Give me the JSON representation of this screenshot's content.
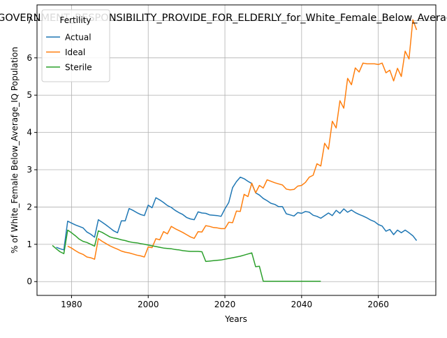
{
  "chart_data": {
    "type": "line",
    "title": "GOVERNMENT_RESPONSIBILITY_PROVIDE_FOR_ELDERLY_for_White_Female_Below_Average_IQ",
    "xlabel": "Years",
    "ylabel": "% of White_Female Below_Average_IQ Population",
    "xlim": [
      1971,
      2075
    ],
    "ylim": [
      -0.37,
      7.42
    ],
    "x_ticks": [
      1980,
      2000,
      2020,
      2040,
      2060
    ],
    "y_ticks": [
      0,
      1,
      2,
      3,
      4,
      5,
      6,
      7
    ],
    "grid": true,
    "legend": {
      "title": "Fertility",
      "placement": "top-left"
    },
    "series": [
      {
        "name": "Actual",
        "color": "#1f77b4",
        "points": [
          [
            1976,
            0.92
          ],
          [
            1977,
            0.88
          ],
          [
            1978,
            0.85
          ],
          [
            1979,
            1.62
          ],
          [
            1980,
            1.57
          ],
          [
            1981,
            1.52
          ],
          [
            1982,
            1.48
          ],
          [
            1983,
            1.44
          ],
          [
            1984,
            1.33
          ],
          [
            1985,
            1.27
          ],
          [
            1986,
            1.19
          ],
          [
            1987,
            1.66
          ],
          [
            1988,
            1.59
          ],
          [
            1989,
            1.52
          ],
          [
            1990,
            1.44
          ],
          [
            1991,
            1.36
          ],
          [
            1992,
            1.31
          ],
          [
            1993,
            1.63
          ],
          [
            1994,
            1.63
          ],
          [
            1995,
            1.96
          ],
          [
            1996,
            1.91
          ],
          [
            1997,
            1.85
          ],
          [
            1998,
            1.8
          ],
          [
            1999,
            1.77
          ],
          [
            2000,
            2.05
          ],
          [
            2001,
            1.98
          ],
          [
            2002,
            2.25
          ],
          [
            2003,
            2.19
          ],
          [
            2004,
            2.12
          ],
          [
            2005,
            2.04
          ],
          [
            2006,
            1.99
          ],
          [
            2007,
            1.91
          ],
          [
            2008,
            1.85
          ],
          [
            2009,
            1.8
          ],
          [
            2010,
            1.72
          ],
          [
            2011,
            1.68
          ],
          [
            2012,
            1.66
          ],
          [
            2013,
            1.87
          ],
          [
            2014,
            1.84
          ],
          [
            2015,
            1.83
          ],
          [
            2016,
            1.79
          ],
          [
            2017,
            1.78
          ],
          [
            2018,
            1.77
          ],
          [
            2019,
            1.75
          ],
          [
            2020,
            1.95
          ],
          [
            2021,
            2.12
          ],
          [
            2022,
            2.52
          ],
          [
            2023,
            2.68
          ],
          [
            2024,
            2.8
          ],
          [
            2025,
            2.76
          ],
          [
            2026,
            2.69
          ],
          [
            2027,
            2.63
          ],
          [
            2028,
            2.38
          ],
          [
            2029,
            2.32
          ],
          [
            2030,
            2.23
          ],
          [
            2031,
            2.17
          ],
          [
            2032,
            2.1
          ],
          [
            2033,
            2.07
          ],
          [
            2034,
            2.01
          ],
          [
            2035,
            2.01
          ],
          [
            2036,
            1.82
          ],
          [
            2037,
            1.79
          ],
          [
            2038,
            1.76
          ],
          [
            2039,
            1.85
          ],
          [
            2040,
            1.83
          ],
          [
            2041,
            1.88
          ],
          [
            2042,
            1.86
          ],
          [
            2043,
            1.78
          ],
          [
            2044,
            1.75
          ],
          [
            2045,
            1.7
          ],
          [
            2046,
            1.77
          ],
          [
            2047,
            1.84
          ],
          [
            2048,
            1.77
          ],
          [
            2049,
            1.91
          ],
          [
            2050,
            1.83
          ],
          [
            2051,
            1.95
          ],
          [
            2052,
            1.86
          ],
          [
            2053,
            1.92
          ],
          [
            2054,
            1.85
          ],
          [
            2055,
            1.8
          ],
          [
            2056,
            1.76
          ],
          [
            2057,
            1.71
          ],
          [
            2058,
            1.65
          ],
          [
            2059,
            1.61
          ],
          [
            2060,
            1.53
          ],
          [
            2061,
            1.49
          ],
          [
            2062,
            1.35
          ],
          [
            2063,
            1.4
          ],
          [
            2064,
            1.26
          ],
          [
            2065,
            1.38
          ],
          [
            2066,
            1.31
          ],
          [
            2067,
            1.38
          ],
          [
            2068,
            1.31
          ],
          [
            2069,
            1.23
          ],
          [
            2070,
            1.1
          ]
        ]
      },
      {
        "name": "Ideal",
        "color": "#ff7f0e",
        "points": [
          [
            1979,
            0.95
          ],
          [
            1980,
            0.9
          ],
          [
            1981,
            0.83
          ],
          [
            1982,
            0.77
          ],
          [
            1983,
            0.73
          ],
          [
            1984,
            0.66
          ],
          [
            1985,
            0.64
          ],
          [
            1986,
            0.6
          ],
          [
            1987,
            1.15
          ],
          [
            1988,
            1.08
          ],
          [
            1989,
            1.02
          ],
          [
            1990,
            0.96
          ],
          [
            1991,
            0.91
          ],
          [
            1992,
            0.87
          ],
          [
            1993,
            0.82
          ],
          [
            1994,
            0.79
          ],
          [
            1995,
            0.77
          ],
          [
            1996,
            0.74
          ],
          [
            1997,
            0.71
          ],
          [
            1998,
            0.69
          ],
          [
            1999,
            0.66
          ],
          [
            2000,
            0.93
          ],
          [
            2001,
            0.91
          ],
          [
            2002,
            1.15
          ],
          [
            2003,
            1.12
          ],
          [
            2004,
            1.34
          ],
          [
            2005,
            1.28
          ],
          [
            2006,
            1.48
          ],
          [
            2007,
            1.42
          ],
          [
            2008,
            1.37
          ],
          [
            2009,
            1.32
          ],
          [
            2010,
            1.26
          ],
          [
            2011,
            1.2
          ],
          [
            2012,
            1.16
          ],
          [
            2013,
            1.34
          ],
          [
            2014,
            1.33
          ],
          [
            2015,
            1.5
          ],
          [
            2016,
            1.48
          ],
          [
            2017,
            1.45
          ],
          [
            2018,
            1.44
          ],
          [
            2019,
            1.42
          ],
          [
            2020,
            1.42
          ],
          [
            2021,
            1.59
          ],
          [
            2022,
            1.58
          ],
          [
            2023,
            1.89
          ],
          [
            2024,
            1.88
          ],
          [
            2025,
            2.34
          ],
          [
            2026,
            2.28
          ],
          [
            2027,
            2.64
          ],
          [
            2028,
            2.38
          ],
          [
            2029,
            2.58
          ],
          [
            2030,
            2.51
          ],
          [
            2031,
            2.73
          ],
          [
            2032,
            2.69
          ],
          [
            2033,
            2.65
          ],
          [
            2034,
            2.62
          ],
          [
            2035,
            2.59
          ],
          [
            2036,
            2.48
          ],
          [
            2037,
            2.46
          ],
          [
            2038,
            2.47
          ],
          [
            2039,
            2.56
          ],
          [
            2040,
            2.58
          ],
          [
            2041,
            2.66
          ],
          [
            2042,
            2.8
          ],
          [
            2043,
            2.85
          ],
          [
            2044,
            3.16
          ],
          [
            2045,
            3.1
          ],
          [
            2046,
            3.71
          ],
          [
            2047,
            3.55
          ],
          [
            2048,
            4.3
          ],
          [
            2049,
            4.12
          ],
          [
            2050,
            4.85
          ],
          [
            2051,
            4.65
          ],
          [
            2052,
            5.45
          ],
          [
            2053,
            5.28
          ],
          [
            2054,
            5.73
          ],
          [
            2055,
            5.62
          ],
          [
            2056,
            5.86
          ],
          [
            2057,
            5.84
          ],
          [
            2058,
            5.84
          ],
          [
            2059,
            5.84
          ],
          [
            2060,
            5.82
          ],
          [
            2061,
            5.86
          ],
          [
            2062,
            5.6
          ],
          [
            2063,
            5.67
          ],
          [
            2064,
            5.38
          ],
          [
            2065,
            5.72
          ],
          [
            2066,
            5.5
          ],
          [
            2067,
            6.18
          ],
          [
            2068,
            5.97
          ],
          [
            2069,
            7.02
          ],
          [
            2070,
            6.75
          ]
        ]
      },
      {
        "name": "Sterile",
        "color": "#2ca02c",
        "points": [
          [
            1975,
            0.97
          ],
          [
            1976,
            0.88
          ],
          [
            1977,
            0.8
          ],
          [
            1978,
            0.75
          ],
          [
            1979,
            1.38
          ],
          [
            1980,
            1.31
          ],
          [
            1981,
            1.23
          ],
          [
            1982,
            1.14
          ],
          [
            1983,
            1.08
          ],
          [
            1984,
            1.05
          ],
          [
            1985,
            1.0
          ],
          [
            1986,
            0.95
          ],
          [
            1987,
            1.36
          ],
          [
            1988,
            1.32
          ],
          [
            1989,
            1.26
          ],
          [
            1990,
            1.2
          ],
          [
            1991,
            1.17
          ],
          [
            1992,
            1.15
          ],
          [
            1993,
            1.12
          ],
          [
            1994,
            1.1
          ],
          [
            1995,
            1.07
          ],
          [
            1996,
            1.05
          ],
          [
            1997,
            1.04
          ],
          [
            1998,
            1.02
          ],
          [
            1999,
            1.0
          ],
          [
            2000,
            0.98
          ],
          [
            2001,
            0.96
          ],
          [
            2002,
            0.94
          ],
          [
            2003,
            0.92
          ],
          [
            2004,
            0.9
          ],
          [
            2005,
            0.89
          ],
          [
            2006,
            0.88
          ],
          [
            2007,
            0.86
          ],
          [
            2008,
            0.85
          ],
          [
            2009,
            0.83
          ],
          [
            2010,
            0.82
          ],
          [
            2011,
            0.81
          ],
          [
            2012,
            0.81
          ],
          [
            2013,
            0.81
          ],
          [
            2014,
            0.8
          ],
          [
            2015,
            0.54
          ],
          [
            2016,
            0.55
          ],
          [
            2017,
            0.56
          ],
          [
            2018,
            0.57
          ],
          [
            2019,
            0.58
          ],
          [
            2020,
            0.6
          ],
          [
            2021,
            0.62
          ],
          [
            2022,
            0.64
          ],
          [
            2023,
            0.66
          ],
          [
            2024,
            0.68
          ],
          [
            2025,
            0.71
          ],
          [
            2026,
            0.74
          ],
          [
            2027,
            0.77
          ],
          [
            2028,
            0.4
          ],
          [
            2029,
            0.41
          ],
          [
            2030,
            0.01
          ],
          [
            2031,
            0.01
          ],
          [
            2032,
            0.01
          ],
          [
            2033,
            0.01
          ],
          [
            2034,
            0.01
          ],
          [
            2035,
            0.01
          ],
          [
            2036,
            0.01
          ],
          [
            2037,
            0.01
          ],
          [
            2038,
            0.01
          ],
          [
            2039,
            0.01
          ],
          [
            2040,
            0.01
          ],
          [
            2041,
            0.01
          ],
          [
            2042,
            0.01
          ],
          [
            2043,
            0.01
          ],
          [
            2044,
            0.01
          ],
          [
            2045,
            0.01
          ]
        ]
      }
    ]
  }
}
